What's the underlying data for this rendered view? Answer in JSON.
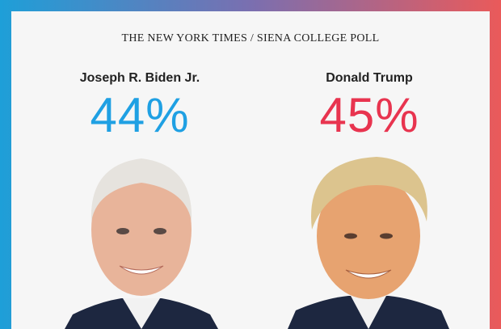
{
  "header": {
    "title": "THE NEW YORK TIMES / SIENA COLLEGE POLL"
  },
  "candidates": [
    {
      "name": "Joseph R. Biden Jr.",
      "share": "44%",
      "color": "#1fa0e3"
    },
    {
      "name": "Donald Trump",
      "share": "45%",
      "color": "#e8344f"
    }
  ]
}
